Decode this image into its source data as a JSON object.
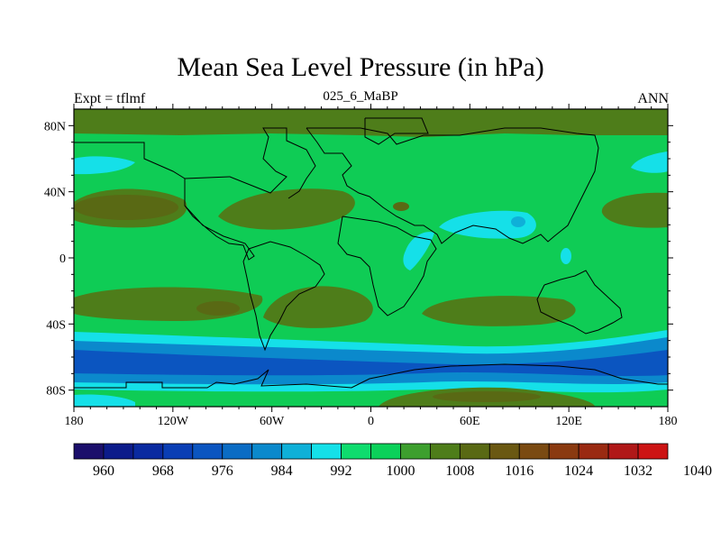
{
  "chart_data": {
    "type": "heatmap",
    "title": "Mean Sea Level Pressure (in hPa)",
    "subtitle_left": "Expt = tflmf",
    "subtitle_center": "025_6_MaBP",
    "subtitle_right": "ANN",
    "x_range": [
      -180,
      180
    ],
    "y_range": [
      -90,
      90
    ],
    "x_ticks": [
      {
        "value": -180,
        "label": "180"
      },
      {
        "value": -120,
        "label": "120W"
      },
      {
        "value": -60,
        "label": "60W"
      },
      {
        "value": 0,
        "label": "0"
      },
      {
        "value": 60,
        "label": "60E"
      },
      {
        "value": 120,
        "label": "120E"
      },
      {
        "value": 180,
        "label": "180"
      }
    ],
    "y_ticks": [
      {
        "value": 80,
        "label": "80N"
      },
      {
        "value": 40,
        "label": "40N"
      },
      {
        "value": 0,
        "label": "0"
      },
      {
        "value": -40,
        "label": "40S"
      },
      {
        "value": -80,
        "label": "80S"
      }
    ],
    "colorbar": {
      "unit": "hPa",
      "levels": [
        960,
        964,
        968,
        972,
        976,
        980,
        984,
        988,
        992,
        996,
        1000,
        1004,
        1008,
        1012,
        1016,
        1020,
        1024,
        1028,
        1032,
        1036,
        1040
      ],
      "labeled_levels": [
        "960",
        "968",
        "976",
        "984",
        "992",
        "1000",
        "1008",
        "1016",
        "1024",
        "1032",
        "1040"
      ],
      "colors": [
        "#1b0f6b",
        "#0c1b8a",
        "#0a2aa0",
        "#0a3eb4",
        "#0b55c0",
        "#0b6cc4",
        "#0b89cc",
        "#0fb0d8",
        "#15e0e8",
        "#0fdc6e",
        "#0bd15a",
        "#3d9f2e",
        "#4e7d1a",
        "#596914",
        "#6a5812",
        "#7a4a12",
        "#8a3a10",
        "#9a2a12",
        "#b01818",
        "#cc1414"
      ]
    },
    "background_level": "1004-1008 hPa (green)",
    "regions": [
      {
        "name": "high-north-pacific",
        "value": 1016,
        "lon": [
          -180,
          -110
        ],
        "lat": [
          15,
          45
        ]
      },
      {
        "name": "high-north-atlantic",
        "value": 1016,
        "lon": [
          -85,
          -5
        ],
        "lat": [
          18,
          42
        ]
      },
      {
        "name": "high-south-pacific",
        "value": 1016,
        "lon": [
          -180,
          -70
        ],
        "lat": [
          -45,
          -20
        ]
      },
      {
        "name": "high-south-atlantic",
        "value": 1016,
        "lon": [
          -60,
          10
        ],
        "lat": [
          -42,
          -15
        ]
      },
      {
        "name": "high-south-indian",
        "value": 1016,
        "lon": [
          30,
          125
        ],
        "lat": [
          -40,
          -22
        ]
      },
      {
        "name": "high-antarctic",
        "value": 1016,
        "lon": [
          0,
          140
        ],
        "lat": [
          -90,
          -78
        ]
      },
      {
        "name": "low-southern-ocean-band",
        "value": 984,
        "lon": [
          -180,
          180
        ],
        "lat": [
          -74,
          -48
        ]
      },
      {
        "name": "low-asian-monsoon",
        "value": 1000,
        "lon": [
          40,
          110
        ],
        "lat": [
          10,
          32
        ]
      }
    ]
  }
}
